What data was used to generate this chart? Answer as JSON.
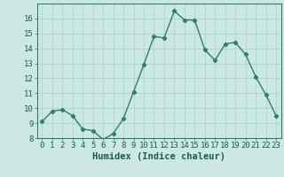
{
  "x": [
    0,
    1,
    2,
    3,
    4,
    5,
    6,
    7,
    8,
    9,
    10,
    11,
    12,
    13,
    14,
    15,
    16,
    17,
    18,
    19,
    20,
    21,
    22,
    23
  ],
  "y": [
    9.1,
    9.8,
    9.9,
    9.5,
    8.6,
    8.5,
    7.9,
    8.3,
    9.3,
    11.1,
    12.9,
    14.8,
    14.7,
    16.5,
    15.9,
    15.9,
    13.9,
    13.2,
    14.3,
    14.4,
    13.6,
    12.1,
    10.9,
    9.5
  ],
  "xlabel": "Humidex (Indice chaleur)",
  "ylim": [
    8,
    17
  ],
  "xlim": [
    -0.5,
    23.5
  ],
  "yticks": [
    8,
    9,
    10,
    11,
    12,
    13,
    14,
    15,
    16
  ],
  "xticks": [
    0,
    1,
    2,
    3,
    4,
    5,
    6,
    7,
    8,
    9,
    10,
    11,
    12,
    13,
    14,
    15,
    16,
    17,
    18,
    19,
    20,
    21,
    22,
    23
  ],
  "line_color": "#2e7d6e",
  "marker": "D",
  "marker_size": 2.2,
  "bg_color": "#cce8e4",
  "grid_color": "#aed4ce",
  "tick_label_fontsize": 6.5,
  "xlabel_fontsize": 7.5,
  "line_width": 1.0,
  "text_color": "#1a5a50"
}
